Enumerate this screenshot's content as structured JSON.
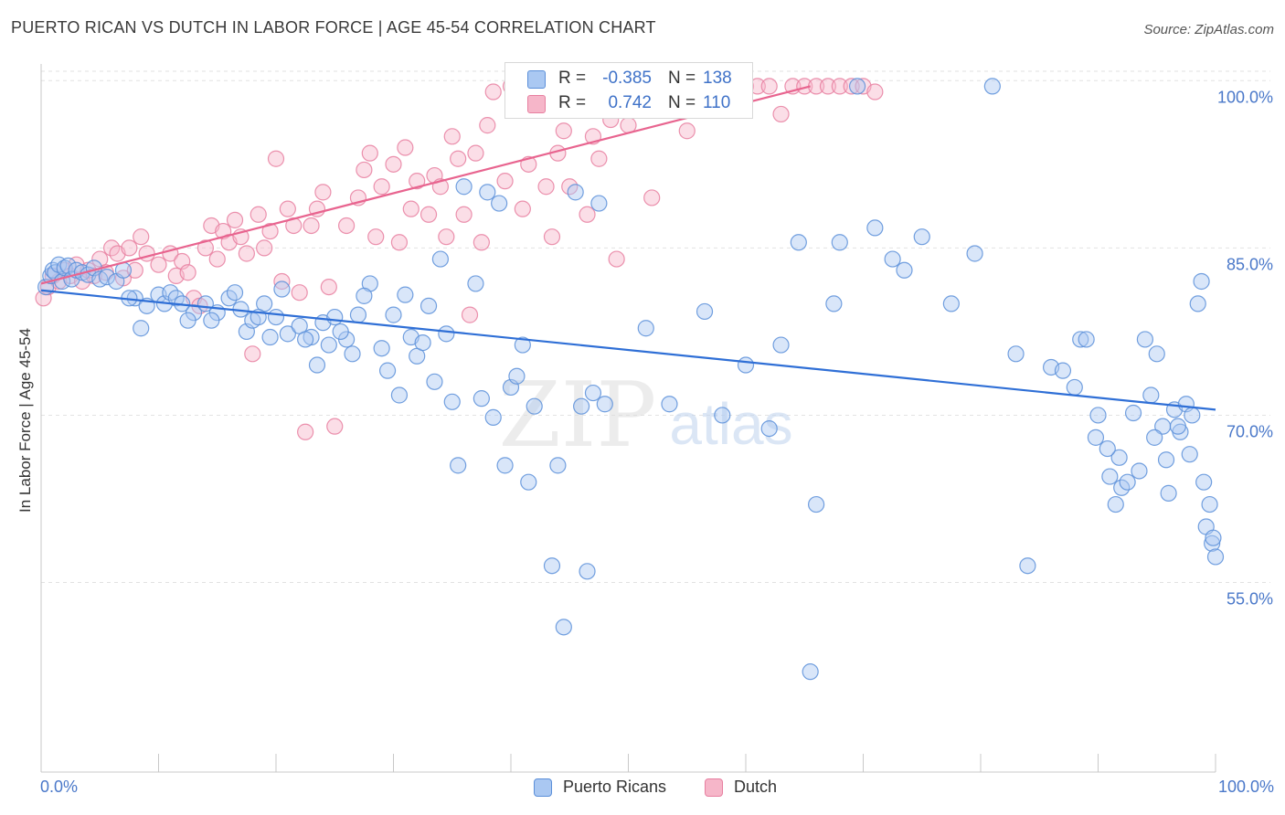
{
  "title": "PUERTO RICAN VS DUTCH IN LABOR FORCE | AGE 45-54 CORRELATION CHART",
  "source": "Source: ZipAtlas.com",
  "watermark": {
    "zip": "ZIP",
    "atlas": "atlas"
  },
  "legend_stats": [
    {
      "r_label": "R =",
      "r_value": "-0.385",
      "n_label": "N =",
      "n_value": "138",
      "fill": "#aac8f2",
      "stroke": "#5b8fd9"
    },
    {
      "r_label": "R =",
      "r_value": "0.742",
      "n_label": "N =",
      "n_value": "110",
      "fill": "#f6b6c9",
      "stroke": "#e77fa0"
    }
  ],
  "legend_bottom": [
    {
      "label": "Puerto Ricans",
      "fill": "#aac8f2",
      "stroke": "#5b8fd9"
    },
    {
      "label": "Dutch",
      "fill": "#f6b6c9",
      "stroke": "#e77fa0"
    }
  ],
  "chart_data": {
    "type": "scatter",
    "title": "PUERTO RICAN VS DUTCH IN LABOR FORCE | AGE 45-54 CORRELATION CHART",
    "xlabel": "",
    "ylabel": "In Labor Force | Age 45-54",
    "x_tick_labels": [
      "0.0%",
      "100.0%"
    ],
    "y_tick_labels": [
      "100.0%",
      "85.0%",
      "70.0%",
      "55.0%"
    ],
    "y_ticks": [
      100,
      85,
      70,
      55
    ],
    "xlim": [
      0,
      100
    ],
    "ylim": [
      38,
      101.5
    ],
    "grid": true,
    "colors": {
      "puerto_ricans": "#5b8fd9",
      "dutch": "#e77fa0",
      "pr_line": "#2f6fd6",
      "dutch_line": "#e8648f"
    },
    "series": [
      {
        "name": "Puerto Ricans",
        "trend": {
          "x": [
            0,
            100
          ],
          "y": [
            81.2,
            70.5
          ]
        },
        "points": [
          [
            0.4,
            81.5
          ],
          [
            0.8,
            82.5
          ],
          [
            1.0,
            83.0
          ],
          [
            1.2,
            82.8
          ],
          [
            1.5,
            83.5
          ],
          [
            1.8,
            82.0
          ],
          [
            2.0,
            83.2
          ],
          [
            2.3,
            83.4
          ],
          [
            2.6,
            82.2
          ],
          [
            3.0,
            83.0
          ],
          [
            3.5,
            82.8
          ],
          [
            4.0,
            82.6
          ],
          [
            4.5,
            83.2
          ],
          [
            5.0,
            82.2
          ],
          [
            5.6,
            82.4
          ],
          [
            6.4,
            82.0
          ],
          [
            7.0,
            83.0
          ],
          [
            8.0,
            80.5
          ],
          [
            7.5,
            80.5
          ],
          [
            9.0,
            79.8
          ],
          [
            8.5,
            77.8
          ],
          [
            10.0,
            80.8
          ],
          [
            10.5,
            80.0
          ],
          [
            11.0,
            81.0
          ],
          [
            11.5,
            80.5
          ],
          [
            12.0,
            80.0
          ],
          [
            13.0,
            79.2
          ],
          [
            12.5,
            78.5
          ],
          [
            14.0,
            80.0
          ],
          [
            15.0,
            79.2
          ],
          [
            14.5,
            78.5
          ],
          [
            16.0,
            80.5
          ],
          [
            17.0,
            79.5
          ],
          [
            16.5,
            81.0
          ],
          [
            17.5,
            77.5
          ],
          [
            18.0,
            78.5
          ],
          [
            19.0,
            80.0
          ],
          [
            18.5,
            78.8
          ],
          [
            19.5,
            77.0
          ],
          [
            20.0,
            78.8
          ],
          [
            21.0,
            77.3
          ],
          [
            20.5,
            81.3
          ],
          [
            22.0,
            78.0
          ],
          [
            23.0,
            77.0
          ],
          [
            22.5,
            76.8
          ],
          [
            24.0,
            78.3
          ],
          [
            23.5,
            74.5
          ],
          [
            25.0,
            78.8
          ],
          [
            24.5,
            76.3
          ],
          [
            26.0,
            76.8
          ],
          [
            25.5,
            77.5
          ],
          [
            27.0,
            79.0
          ],
          [
            26.5,
            75.5
          ],
          [
            28.0,
            81.8
          ],
          [
            27.5,
            80.7
          ],
          [
            29.0,
            76.0
          ],
          [
            30.0,
            79.0
          ],
          [
            29.5,
            74.0
          ],
          [
            31.0,
            80.8
          ],
          [
            30.5,
            71.8
          ],
          [
            32.0,
            75.3
          ],
          [
            31.5,
            77.0
          ],
          [
            33.0,
            79.8
          ],
          [
            32.5,
            76.5
          ],
          [
            34.0,
            84.0
          ],
          [
            33.5,
            73.0
          ],
          [
            35.0,
            71.2
          ],
          [
            34.5,
            77.3
          ],
          [
            36.0,
            90.5
          ],
          [
            35.5,
            65.5
          ],
          [
            37.0,
            81.8
          ],
          [
            37.5,
            71.5
          ],
          [
            38.0,
            90.0
          ],
          [
            38.5,
            69.8
          ],
          [
            39.0,
            89.0
          ],
          [
            39.5,
            65.5
          ],
          [
            40.0,
            72.5
          ],
          [
            40.5,
            73.5
          ],
          [
            41.0,
            76.3
          ],
          [
            41.5,
            64.0
          ],
          [
            42.0,
            70.8
          ],
          [
            43.5,
            56.5
          ],
          [
            44.0,
            65.5
          ],
          [
            44.5,
            51.0
          ],
          [
            45.5,
            90.0
          ],
          [
            46.0,
            70.8
          ],
          [
            46.5,
            56.0
          ],
          [
            47.0,
            72.0
          ],
          [
            47.5,
            89.0
          ],
          [
            48.0,
            71.0
          ],
          [
            51.5,
            77.8
          ],
          [
            53.5,
            71.0
          ],
          [
            56.5,
            79.3
          ],
          [
            58.0,
            70.0
          ],
          [
            60.0,
            74.5
          ],
          [
            62.0,
            68.8
          ],
          [
            63.0,
            76.3
          ],
          [
            64.5,
            85.5
          ],
          [
            65.5,
            47.0
          ],
          [
            66.0,
            62.0
          ],
          [
            67.5,
            80.0
          ],
          [
            68.0,
            85.5
          ],
          [
            69.5,
            99.5
          ],
          [
            71.0,
            86.8
          ],
          [
            72.5,
            84.0
          ],
          [
            73.5,
            83.0
          ],
          [
            75.0,
            86.0
          ],
          [
            77.5,
            80.0
          ],
          [
            79.5,
            84.5
          ],
          [
            81.0,
            99.5
          ],
          [
            83.0,
            75.5
          ],
          [
            84.0,
            56.5
          ],
          [
            86.0,
            74.3
          ],
          [
            87.0,
            74.0
          ],
          [
            88.0,
            72.5
          ],
          [
            88.5,
            76.8
          ],
          [
            89.0,
            76.8
          ],
          [
            90.0,
            70.0
          ],
          [
            91.0,
            64.5
          ],
          [
            91.5,
            62.0
          ],
          [
            92.0,
            63.5
          ],
          [
            93.0,
            70.2
          ],
          [
            94.0,
            76.8
          ],
          [
            94.5,
            71.8
          ],
          [
            95.0,
            75.5
          ],
          [
            95.5,
            69.0
          ],
          [
            96.0,
            63.0
          ],
          [
            96.5,
            70.5
          ],
          [
            97.0,
            68.5
          ],
          [
            97.5,
            71.0
          ],
          [
            98.0,
            70.0
          ],
          [
            98.5,
            80.0
          ],
          [
            98.8,
            82.0
          ],
          [
            99.0,
            64.0
          ],
          [
            99.2,
            60.0
          ],
          [
            99.5,
            62.0
          ],
          [
            99.7,
            58.5
          ],
          [
            100.0,
            57.3
          ],
          [
            99.8,
            59.0
          ],
          [
            97.8,
            66.5
          ],
          [
            96.8,
            69.0
          ],
          [
            95.8,
            66.0
          ],
          [
            94.8,
            68.0
          ],
          [
            93.5,
            65.0
          ],
          [
            92.5,
            64.0
          ],
          [
            91.8,
            66.2
          ],
          [
            90.8,
            67.0
          ],
          [
            89.8,
            68.0
          ]
        ]
      },
      {
        "name": "Dutch",
        "trend": {
          "x": [
            0,
            65.5
          ],
          "y": [
            81.8,
            99.5
          ]
        },
        "points": [
          [
            0.2,
            80.5
          ],
          [
            0.6,
            81.5
          ],
          [
            1.0,
            82.5
          ],
          [
            1.5,
            82.0
          ],
          [
            2.0,
            83.0
          ],
          [
            2.5,
            82.5
          ],
          [
            3.0,
            83.5
          ],
          [
            3.5,
            82.0
          ],
          [
            4.0,
            83.0
          ],
          [
            4.5,
            82.5
          ],
          [
            5.0,
            84.0
          ],
          [
            5.5,
            82.8
          ],
          [
            6.0,
            85.0
          ],
          [
            6.5,
            84.5
          ],
          [
            7.0,
            82.3
          ],
          [
            7.5,
            85.0
          ],
          [
            8.0,
            83.0
          ],
          [
            8.5,
            86.0
          ],
          [
            9.0,
            84.5
          ],
          [
            10.0,
            83.5
          ],
          [
            11.0,
            84.5
          ],
          [
            11.5,
            82.5
          ],
          [
            12.0,
            83.8
          ],
          [
            12.5,
            82.8
          ],
          [
            13.0,
            80.5
          ],
          [
            13.5,
            79.8
          ],
          [
            14.0,
            85.0
          ],
          [
            14.5,
            87.0
          ],
          [
            15.0,
            84.0
          ],
          [
            15.5,
            86.5
          ],
          [
            16.0,
            85.5
          ],
          [
            16.5,
            87.5
          ],
          [
            17.0,
            86.0
          ],
          [
            17.5,
            84.5
          ],
          [
            18.0,
            75.5
          ],
          [
            18.5,
            88.0
          ],
          [
            19.0,
            85.0
          ],
          [
            19.5,
            86.5
          ],
          [
            20.0,
            93.0
          ],
          [
            20.5,
            82.0
          ],
          [
            21.0,
            88.5
          ],
          [
            21.5,
            87.0
          ],
          [
            22.0,
            81.0
          ],
          [
            22.5,
            68.5
          ],
          [
            23.0,
            87.0
          ],
          [
            23.5,
            88.5
          ],
          [
            24.0,
            90.0
          ],
          [
            24.5,
            81.5
          ],
          [
            25.0,
            69.0
          ],
          [
            26.0,
            87.0
          ],
          [
            27.0,
            89.5
          ],
          [
            27.5,
            92.0
          ],
          [
            28.0,
            93.5
          ],
          [
            28.5,
            86.0
          ],
          [
            29.0,
            90.5
          ],
          [
            30.0,
            92.5
          ],
          [
            30.5,
            85.5
          ],
          [
            31.0,
            94.0
          ],
          [
            31.5,
            88.5
          ],
          [
            32.0,
            91.0
          ],
          [
            33.0,
            88.0
          ],
          [
            33.5,
            91.5
          ],
          [
            34.0,
            90.5
          ],
          [
            34.5,
            86.0
          ],
          [
            35.0,
            95.0
          ],
          [
            35.5,
            93.0
          ],
          [
            36.0,
            88.0
          ],
          [
            36.5,
            79.0
          ],
          [
            37.0,
            93.5
          ],
          [
            37.5,
            85.5
          ],
          [
            38.0,
            96.0
          ],
          [
            38.5,
            99.0
          ],
          [
            39.5,
            91.0
          ],
          [
            40.0,
            99.5
          ],
          [
            41.0,
            88.5
          ],
          [
            41.5,
            92.5
          ],
          [
            42.0,
            99.5
          ],
          [
            43.0,
            90.5
          ],
          [
            43.5,
            86.0
          ],
          [
            44.0,
            93.5
          ],
          [
            44.5,
            95.5
          ],
          [
            45.0,
            90.5
          ],
          [
            46.0,
            99.0
          ],
          [
            46.5,
            88.0
          ],
          [
            47.0,
            95.0
          ],
          [
            47.5,
            93.0
          ],
          [
            48.0,
            98.5
          ],
          [
            48.5,
            96.5
          ],
          [
            49.0,
            84.0
          ],
          [
            50.0,
            96.0
          ],
          [
            51.0,
            99.5
          ],
          [
            52.0,
            89.5
          ],
          [
            53.0,
            98.5
          ],
          [
            54.0,
            99.0
          ],
          [
            55.0,
            95.5
          ],
          [
            57.0,
            99.5
          ],
          [
            58.0,
            99.5
          ],
          [
            59.0,
            99.0
          ],
          [
            60.0,
            99.5
          ],
          [
            61.0,
            99.5
          ],
          [
            62.0,
            99.5
          ],
          [
            63.0,
            97.0
          ],
          [
            64.0,
            99.5
          ],
          [
            65.0,
            99.5
          ],
          [
            66.0,
            99.5
          ],
          [
            67.0,
            99.5
          ],
          [
            68.0,
            99.5
          ],
          [
            69.0,
            99.5
          ],
          [
            70.0,
            99.5
          ],
          [
            71.0,
            99.0
          ]
        ]
      }
    ]
  }
}
